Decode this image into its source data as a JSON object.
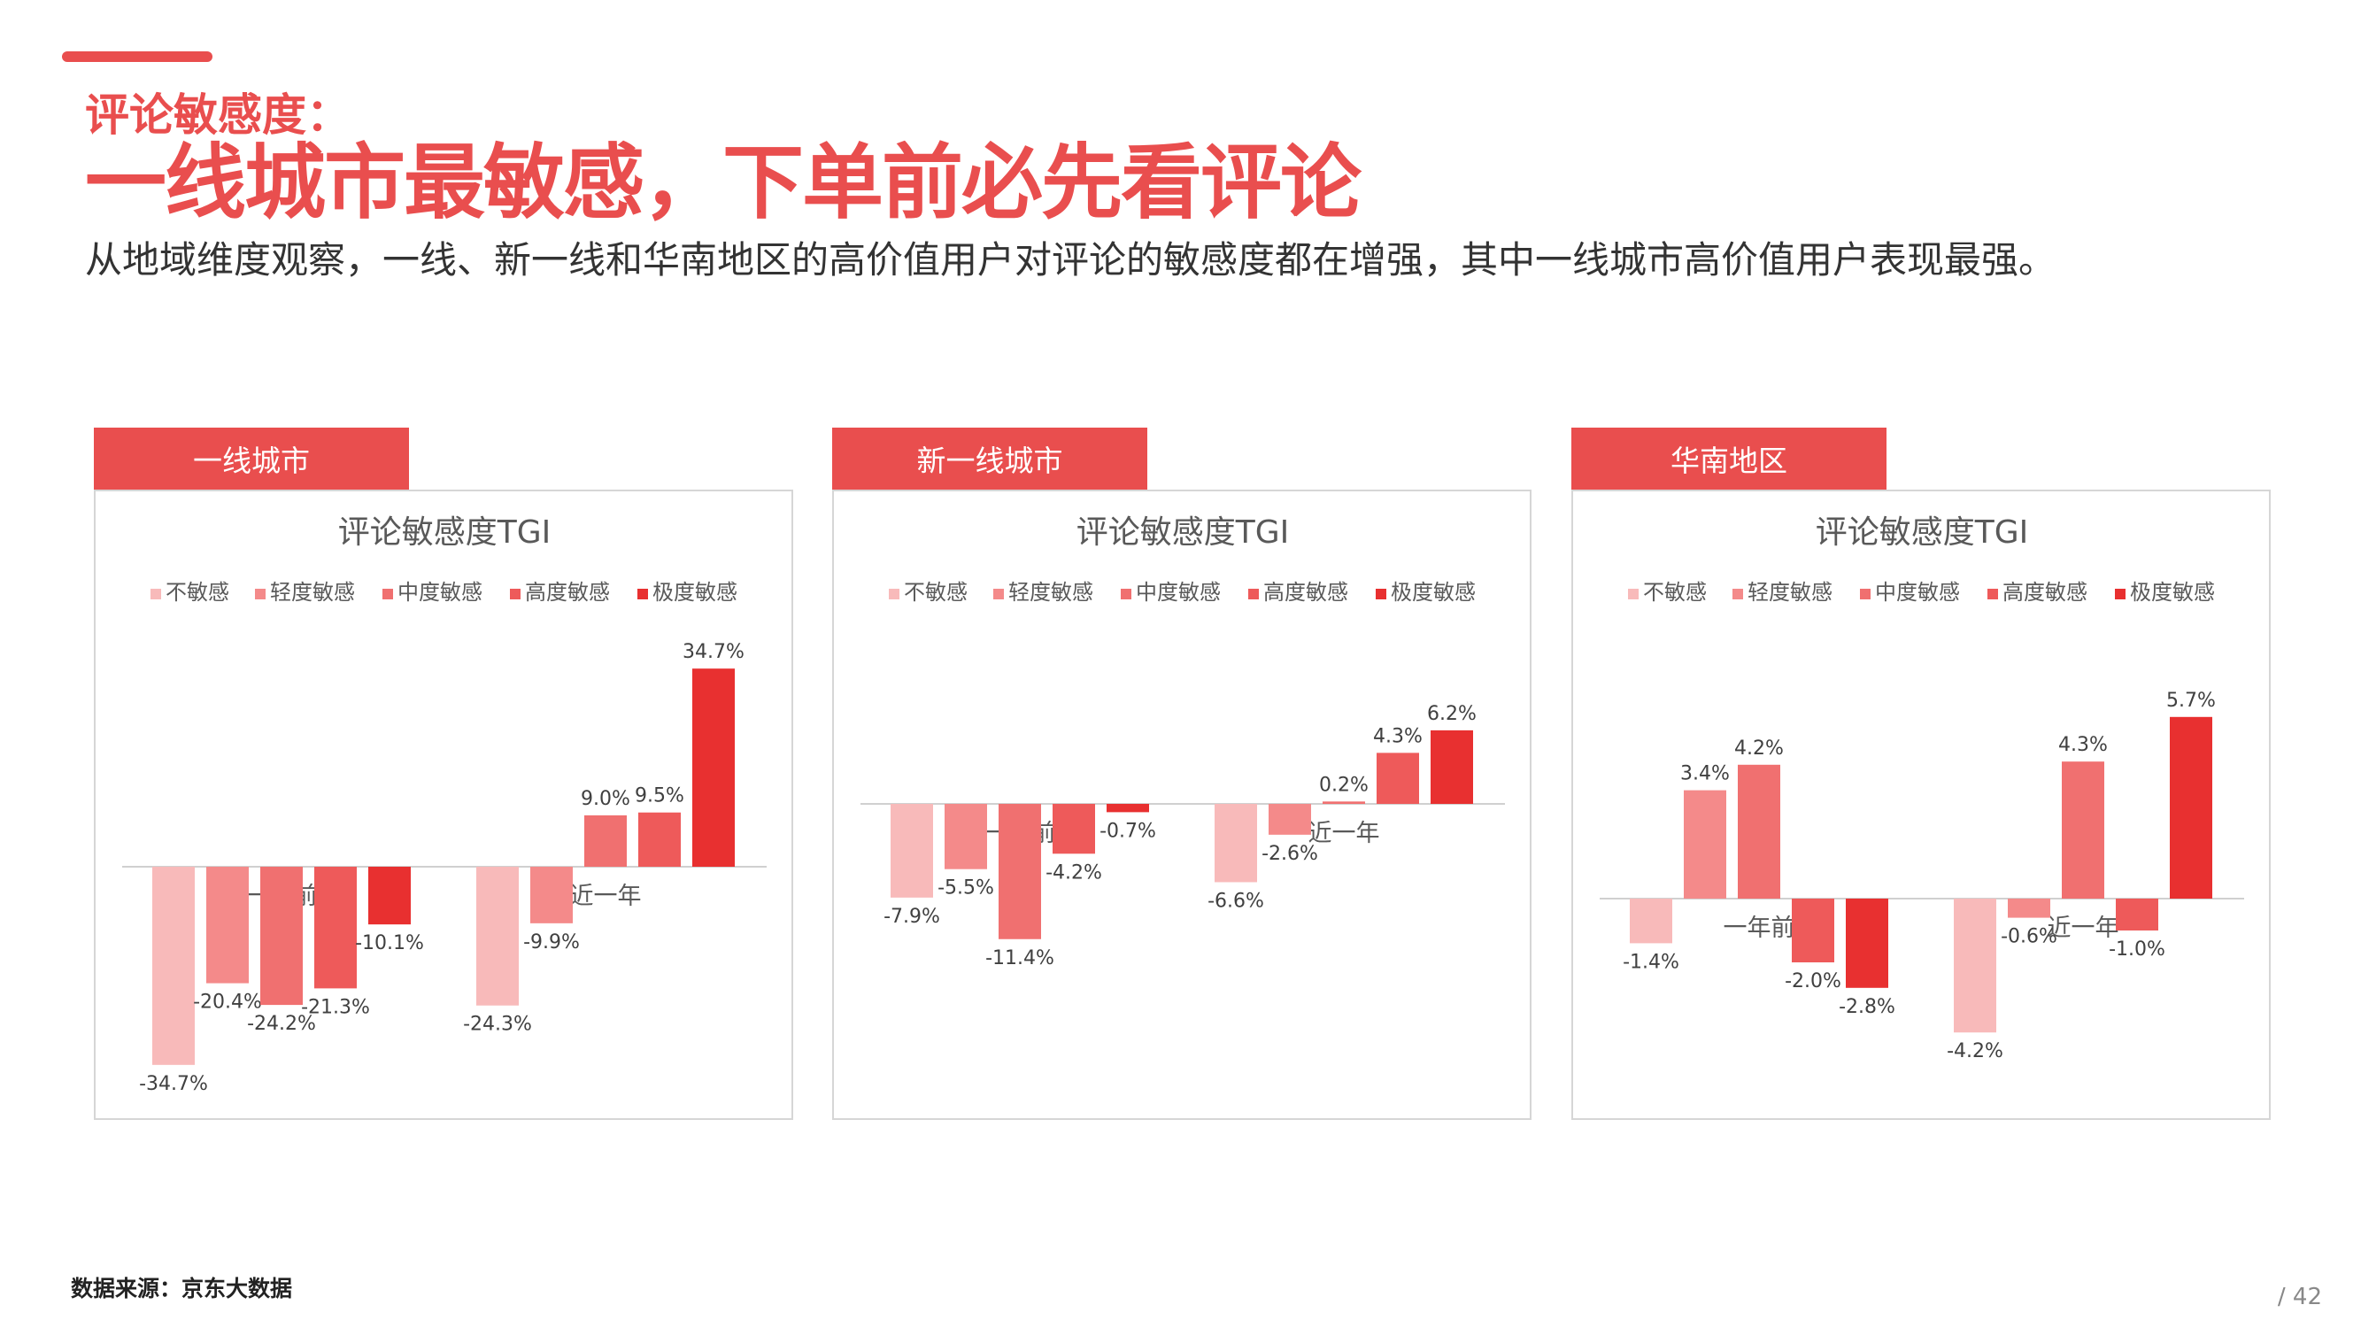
{
  "header": {
    "kicker": "评论敏感度：",
    "headline": "一线城市最敏感，下单前必先看评论",
    "subhead": "从地域维度观察，一线、新一线和华南地区的高价值用户对评论的敏感度都在增强，其中一线城市高价值用户表现最强。"
  },
  "colors": {
    "accent": "#E94E4E",
    "series": [
      "#F8BABA",
      "#F48A8A",
      "#F07070",
      "#EE5A5A",
      "#E83030"
    ]
  },
  "panels": [
    {
      "tab": "一线城市"
    },
    {
      "tab": "新一线城市"
    },
    {
      "tab": "华南地区"
    }
  ],
  "chart_data": [
    {
      "type": "bar",
      "title": "评论敏感度TGI",
      "categories": [
        "一年前",
        "近一年"
      ],
      "series": [
        {
          "name": "不敏感",
          "values": [
            -34.7,
            -24.3
          ]
        },
        {
          "name": "轻度敏感",
          "values": [
            -20.4,
            -9.9
          ]
        },
        {
          "name": "中度敏感",
          "values": [
            -24.2,
            9.0
          ]
        },
        {
          "name": "高度敏感",
          "values": [
            -21.3,
            9.5
          ]
        },
        {
          "name": "极度敏感",
          "values": [
            -10.1,
            34.7
          ]
        }
      ],
      "value_format": "percent",
      "legend": "top"
    },
    {
      "type": "bar",
      "title": "评论敏感度TGI",
      "categories": [
        "一年前",
        "近一年"
      ],
      "series": [
        {
          "name": "不敏感",
          "values": [
            -7.9,
            -6.6
          ]
        },
        {
          "name": "轻度敏感",
          "values": [
            -5.5,
            -2.6
          ]
        },
        {
          "name": "中度敏感",
          "values": [
            -11.4,
            0.2
          ]
        },
        {
          "name": "高度敏感",
          "values": [
            -4.2,
            4.3
          ]
        },
        {
          "name": "极度敏感",
          "values": [
            -0.7,
            6.2
          ]
        }
      ],
      "value_format": "percent",
      "legend": "top"
    },
    {
      "type": "bar",
      "title": "评论敏感度TGI",
      "categories": [
        "一年前",
        "近一年"
      ],
      "series": [
        {
          "name": "不敏感",
          "values": [
            -1.4,
            -4.2
          ]
        },
        {
          "name": "轻度敏感",
          "values": [
            3.4,
            -0.6
          ]
        },
        {
          "name": "中度敏感",
          "values": [
            4.2,
            4.3
          ]
        },
        {
          "name": "高度敏感",
          "values": [
            -2.0,
            -1.0
          ]
        },
        {
          "name": "极度敏感",
          "values": [
            -2.8,
            5.7
          ]
        }
      ],
      "value_format": "percent",
      "legend": "top"
    }
  ],
  "footer": {
    "source": "数据来源：京东大数据",
    "page": "/ 42"
  }
}
